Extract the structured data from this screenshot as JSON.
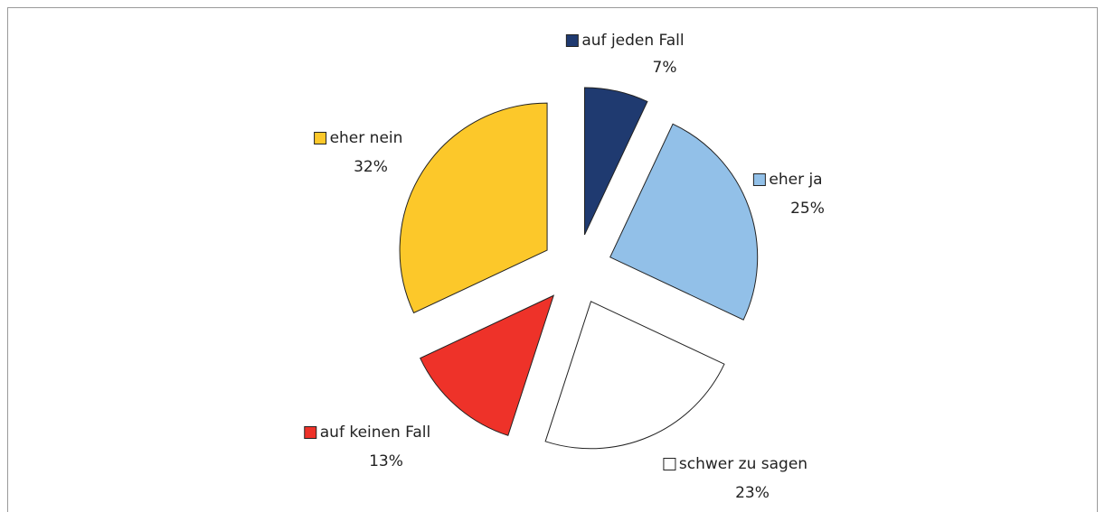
{
  "chart_data": {
    "type": "pie",
    "categories": [
      "auf jeden Fall",
      "eher ja",
      "schwer zu sagen",
      "auf keinen Fall",
      "eher nein"
    ],
    "values": [
      7,
      25,
      23,
      13,
      32
    ],
    "value_labels": [
      "7%",
      "25%",
      "23%",
      "13%",
      "32%"
    ],
    "colors": [
      "#1f3a70",
      "#92c0e8",
      "#ffffff",
      "#ee3229",
      "#fcc82a"
    ]
  }
}
